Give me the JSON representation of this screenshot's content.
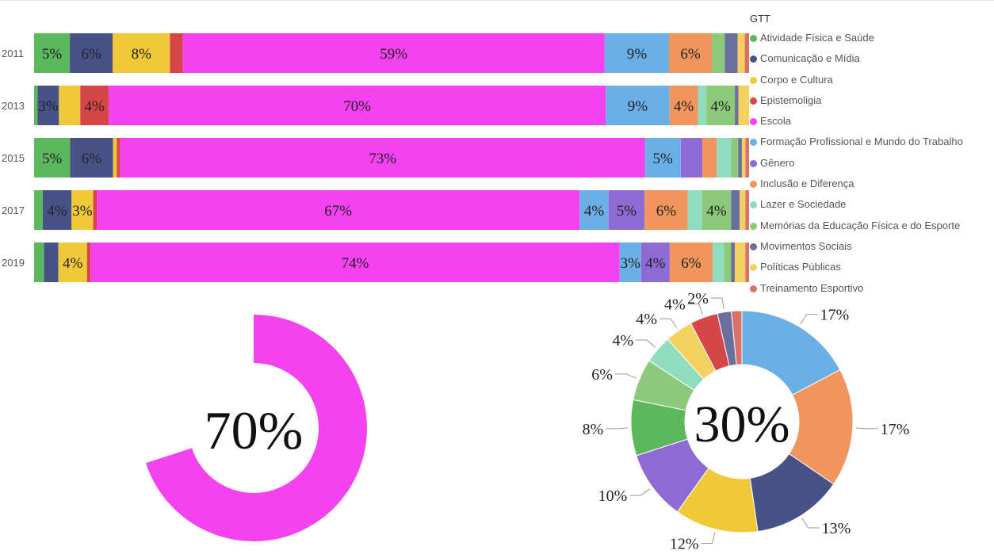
{
  "chart_data": [
    {
      "type": "bar",
      "stacked": true,
      "orientation": "horizontal",
      "normalized": true,
      "categories": [
        "2011",
        "2013",
        "2015",
        "2017",
        "2019"
      ],
      "legend_title": "GTT",
      "legend_position": "right",
      "series": [
        {
          "name": "Atividade Física e Saúde",
          "color": "#5cb85c",
          "values": [
            5,
            0.5,
            5,
            1.2,
            1.4
          ]
        },
        {
          "name": "Comunicação e Mídia",
          "color": "#475388",
          "values": [
            6,
            3,
            6,
            4,
            2
          ]
        },
        {
          "name": "Corpo e Cultura",
          "color": "#f0c93a",
          "values": [
            8,
            3,
            0.5,
            3,
            4
          ]
        },
        {
          "name": "Epistemoligia",
          "color": "#d64646",
          "values": [
            1.8,
            4,
            0.5,
            0.5,
            0.5
          ]
        },
        {
          "name": "Escola",
          "color": "#f542f0",
          "values": [
            59,
            70,
            73,
            67,
            74
          ]
        },
        {
          "name": "Formação  Profissional e Mundo do Trabalho",
          "color": "#6aafe6",
          "values": [
            9,
            9,
            5,
            4,
            3
          ]
        },
        {
          "name": "Gênero",
          "color": "#8e6ad5",
          "values": [
            0,
            0,
            3,
            5,
            4
          ]
        },
        {
          "name": "Inclusão e Diferença",
          "color": "#f0965c",
          "values": [
            6,
            4,
            2,
            6,
            6
          ]
        },
        {
          "name": "Lazer e Sociedade",
          "color": "#8fdcbf",
          "values": [
            0,
            1.2,
            2,
            2,
            1.6
          ]
        },
        {
          "name": "Memórias da Educação Física e do Esporte",
          "color": "#8cc97a",
          "values": [
            1.8,
            4,
            1,
            4,
            1
          ]
        },
        {
          "name": "Movimentos Sociais",
          "color": "#6a6f9e",
          "values": [
            1.8,
            0.5,
            0.5,
            1.2,
            0.5
          ]
        },
        {
          "name": "Políticas Públicas",
          "color": "#f4d060",
          "values": [
            1,
            1.5,
            0.5,
            0.8,
            1.5
          ]
        },
        {
          "name": "Treinamento Esportivo",
          "color": "#d9706a",
          "values": [
            0.6,
            0,
            0.5,
            0.5,
            0.5
          ]
        }
      ],
      "data_labels": [
        [
          "5%",
          "6%",
          "8%",
          "",
          "59%",
          "9%",
          "",
          "6%",
          "",
          "",
          "",
          "",
          ""
        ],
        [
          "",
          "3%",
          "",
          "4%",
          "70%",
          "9%",
          "",
          "4%",
          "",
          "4%",
          "",
          "",
          ""
        ],
        [
          "5%",
          "6%",
          "",
          "",
          "73%",
          "5%",
          "",
          "",
          "",
          "",
          "",
          "",
          ""
        ],
        [
          "",
          "4%",
          "3%",
          "",
          "67%",
          "4%",
          "5%",
          "6%",
          "",
          "4%",
          "",
          "",
          ""
        ],
        [
          "",
          "",
          "4%",
          "",
          "74%",
          "3%",
          "4%",
          "6%",
          "",
          "",
          "",
          "",
          ""
        ]
      ],
      "xlim": [
        0,
        100
      ]
    },
    {
      "type": "pie",
      "style": "gauge",
      "value": 70,
      "center_label": "70%",
      "color": "#f542f0"
    },
    {
      "type": "pie",
      "style": "donut",
      "center_label": "30%",
      "slices": [
        {
          "value": 17,
          "label": "17%",
          "color": "#6aafe6"
        },
        {
          "value": 17,
          "label": "17%",
          "color": "#f0965c"
        },
        {
          "value": 13,
          "label": "13%",
          "color": "#475388"
        },
        {
          "value": 12,
          "label": "12%",
          "color": "#f0c93a"
        },
        {
          "value": 10,
          "label": "10%",
          "color": "#8e6ad5"
        },
        {
          "value": 8,
          "label": "8%",
          "color": "#5cb85c"
        },
        {
          "value": 6,
          "label": "6%",
          "color": "#8cc97a"
        },
        {
          "value": 4,
          "label": "4%",
          "color": "#8fdcbf"
        },
        {
          "value": 4,
          "label": "4%",
          "color": "#f4d060"
        },
        {
          "value": 4,
          "label": "4%",
          "color": "#d64646"
        },
        {
          "value": 2,
          "label": "2%",
          "color": "#6a6f9e"
        },
        {
          "value": 1.5,
          "label": "",
          "color": "#d9706a"
        }
      ]
    }
  ]
}
